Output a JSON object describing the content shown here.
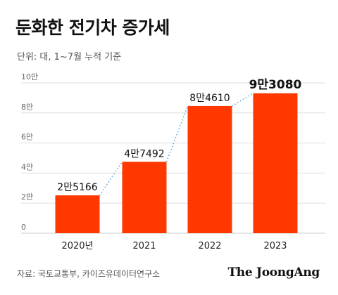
{
  "header": {
    "title": "둔화한 전기차 증가세",
    "subtitle": "단위: 대, 1~7월 누적 기준"
  },
  "footer": {
    "source": "자료: 국토교통부, 카이즈유데이터연구소",
    "logo": "The JoongAng"
  },
  "colors": {
    "bar": "#ff3800",
    "grid": "#dddddd",
    "connector": "#4aa8e0"
  },
  "chart_data": {
    "type": "bar",
    "title": "둔화한 전기차 증가세",
    "subtitle": "단위: 대, 1~7월 누적 기준",
    "categories": [
      "2020년",
      "2021",
      "2022",
      "2023"
    ],
    "values": [
      25166,
      47492,
      84610,
      93080
    ],
    "value_labels": [
      "2만5166",
      "4만7492",
      "8만4610",
      "9만3080"
    ],
    "ylim": [
      0,
      100000
    ],
    "y_ticks": [
      0,
      20000,
      40000,
      60000,
      80000,
      100000
    ],
    "y_tick_labels": [
      "0",
      "2만",
      "4만",
      "6만",
      "8만",
      "10만"
    ],
    "grid": true,
    "connectors": "dotted"
  }
}
